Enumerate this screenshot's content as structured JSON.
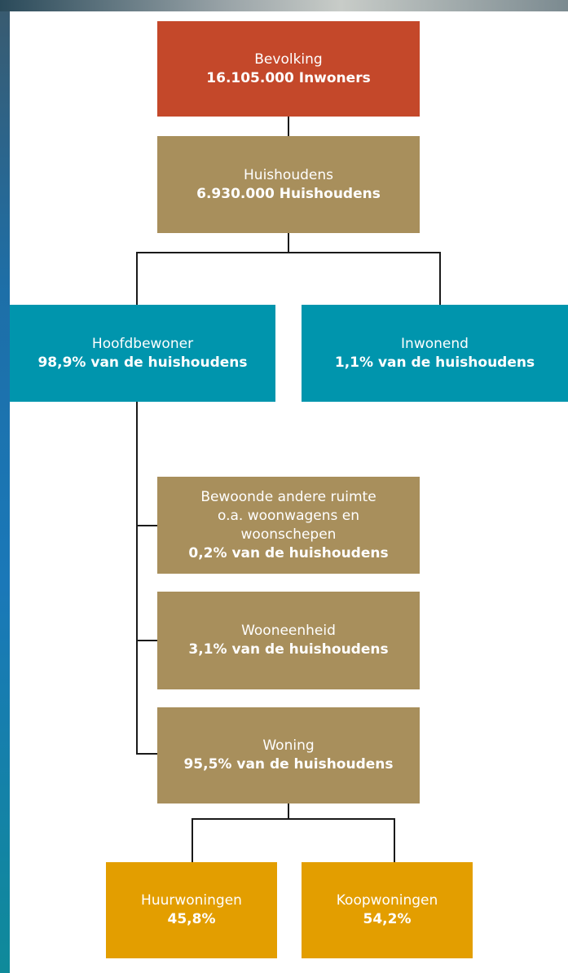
{
  "nodes": [
    {
      "label": "Bevolking",
      "value": "16.105.000 Inwoners"
    },
    {
      "label": "Huishoudens",
      "value": "6.930.000 Huishoudens"
    },
    {
      "label": "Hoofdbewoner",
      "value": "98,9% van de huishoudens"
    },
    {
      "label": "Inwonend",
      "value": "1,1% van de huishoudens"
    },
    {
      "label_lines": [
        "Bewoonde andere ruimte",
        "o.a. woonwagens en",
        "woonschepen"
      ],
      "value": "0,2% van de huishoudens"
    },
    {
      "label": "Wooneenheid",
      "value": "3,1% van de huishoudens"
    },
    {
      "label": "Woning",
      "value": "95,5% van de huishoudens"
    },
    {
      "label": "Huurwoningen",
      "value": "45,8%"
    },
    {
      "label": "Koopwoningen",
      "value": "54,2%"
    }
  ]
}
